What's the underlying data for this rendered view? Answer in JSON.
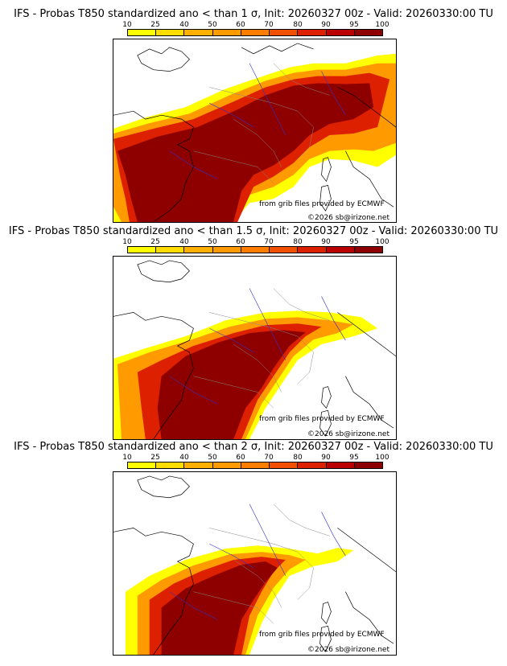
{
  "legend": {
    "levels": [
      "10",
      "25",
      "40",
      "50",
      "60",
      "70",
      "80",
      "90",
      "95",
      "100"
    ],
    "colors": [
      "#ffff00",
      "#ffdd00",
      "#ffb000",
      "#ff9a00",
      "#ff7e00",
      "#f25000",
      "#dd2000",
      "#bb0000",
      "#8e0000",
      "#5a0000"
    ]
  },
  "panels": [
    {
      "title": "IFS - Probas T850  standardized ano < than 1 σ, Init: 20260327 00z - Valid: 20260330:00 TU",
      "credit_source": "from grib files provided by ECMWF",
      "copyright": "©2026 sb@irizone.net"
    },
    {
      "title": "IFS - Probas T850  standardized ano < than 1.5 σ, Init: 20260327 00z - Valid: 20260330:00 TU",
      "credit_source": "from grib files provided by ECMWF",
      "copyright": "©2026 sb@irizone.net"
    },
    {
      "title": "IFS - Probas T850  standardized ano < than 2 σ, Init: 20260327 00z - Valid: 20260330:00 TU",
      "credit_source": "from grib files provided by ECMWF",
      "copyright": "©2026 sb@irizone.net"
    }
  ]
}
